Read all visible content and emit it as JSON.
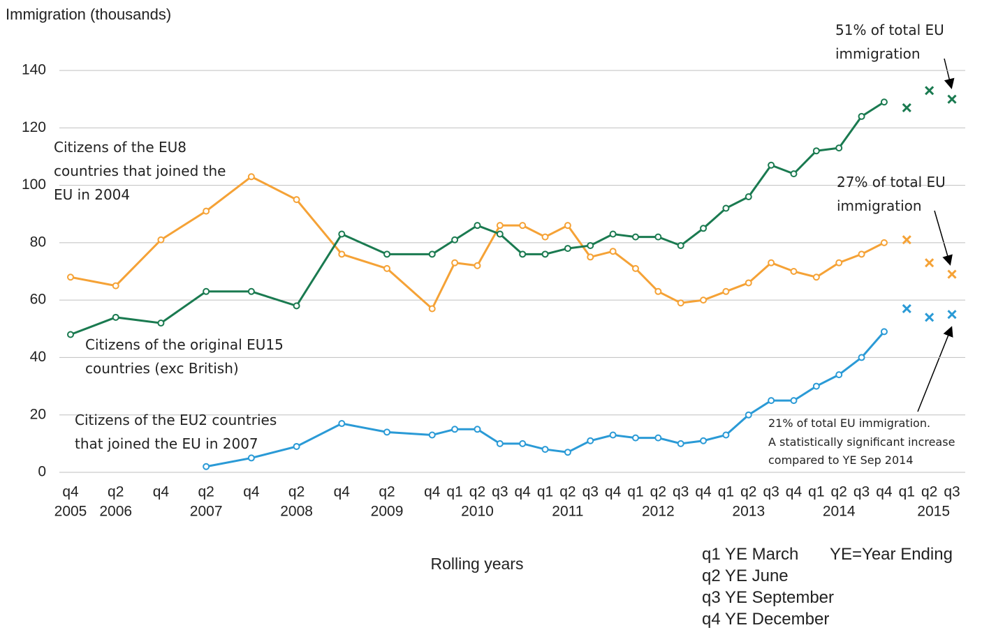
{
  "chart_data": {
    "type": "line",
    "y_axis_label": "Immigration (thousands)",
    "x_axis_label": "Rolling years",
    "categories": [
      "q4",
      "q2",
      "q4",
      "q2",
      "q4",
      "q2",
      "q4",
      "q2",
      "q4",
      "q1",
      "q2",
      "q3",
      "q4",
      "q1",
      "q2",
      "q3",
      "q4",
      "q1",
      "q2",
      "q3",
      "q4",
      "q1",
      "q2",
      "q3",
      "q4",
      "q1",
      "q2",
      "q3",
      "q4",
      "q1",
      "q2",
      "q3"
    ],
    "category_years": [
      "2005",
      "2006",
      null,
      "2007",
      null,
      "2008",
      null,
      "2009",
      null,
      null,
      "2010",
      null,
      null,
      null,
      "2011",
      null,
      null,
      null,
      "2012",
      null,
      null,
      null,
      "2013",
      null,
      null,
      null,
      "2014",
      null,
      null,
      null,
      "2015",
      null
    ],
    "ylim": [
      0,
      140
    ],
    "yticks": [
      0,
      20,
      40,
      60,
      80,
      100,
      120,
      140
    ],
    "grid": true,
    "series": [
      {
        "name": "Citizens of the EU8\ncountries that joined the\nEU in 2004",
        "color": "#f5a236",
        "values": [
          68,
          65,
          81,
          91,
          103,
          95,
          76,
          71,
          57,
          73,
          72,
          86,
          86,
          82,
          86,
          75,
          77,
          71,
          63,
          59,
          60,
          63,
          66,
          73,
          70,
          68,
          73,
          76,
          80,
          null,
          null,
          null
        ],
        "provisional": [
          null,
          null,
          null,
          null,
          null,
          null,
          null,
          null,
          null,
          null,
          null,
          null,
          null,
          null,
          null,
          null,
          null,
          null,
          null,
          null,
          null,
          null,
          null,
          null,
          null,
          null,
          null,
          null,
          null,
          81,
          73,
          69
        ]
      },
      {
        "name": "Citizens of the original  EU15\ncountries (exc British)",
        "color": "#1a7a50",
        "values": [
          48,
          54,
          52,
          63,
          63,
          58,
          83,
          76,
          76,
          81,
          86,
          83,
          76,
          76,
          78,
          79,
          83,
          82,
          82,
          79,
          85,
          92,
          96,
          107,
          104,
          112,
          113,
          124,
          129,
          null,
          null,
          null
        ],
        "provisional": [
          null,
          null,
          null,
          null,
          null,
          null,
          null,
          null,
          null,
          null,
          null,
          null,
          null,
          null,
          null,
          null,
          null,
          null,
          null,
          null,
          null,
          null,
          null,
          null,
          null,
          null,
          null,
          null,
          null,
          127,
          133,
          130
        ]
      },
      {
        "name": "Citizens of the EU2 countries\nthat joined the EU in 2007",
        "color": "#2a9ad6",
        "values": [
          null,
          null,
          null,
          2,
          5,
          9,
          17,
          14,
          13,
          15,
          15,
          10,
          10,
          8,
          7,
          11,
          13,
          12,
          12,
          10,
          11,
          13,
          20,
          25,
          25,
          30,
          34,
          40,
          49,
          null,
          null,
          null
        ],
        "provisional": [
          null,
          null,
          null,
          null,
          null,
          null,
          null,
          null,
          null,
          null,
          null,
          null,
          null,
          null,
          null,
          null,
          null,
          null,
          null,
          null,
          null,
          null,
          null,
          null,
          null,
          null,
          null,
          null,
          null,
          57,
          54,
          55
        ]
      }
    ],
    "annotations": [
      "51% of total EU\nimmigration",
      "27% of total EU\nimmigration",
      "21% of total EU immigration.\nA statistically significant increase\ncompared to YE Sep 2014"
    ],
    "key": [
      "q1 YE March",
      "YE=Year Ending",
      "q2 YE June",
      "q3 YE September",
      "q4 YE December"
    ]
  }
}
